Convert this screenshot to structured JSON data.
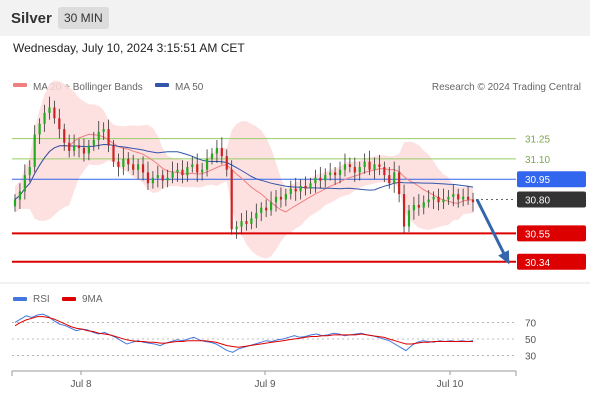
{
  "header": {
    "title": "Silver",
    "timeframe": "30 MIN",
    "datetime": "Wednesday, July 10, 2024 3:15:51 AM CET"
  },
  "legend": {
    "ma20": "MA 20 + Bollinger Bands",
    "ma50": "MA 50",
    "credit": "Research © 2024 Trading Central"
  },
  "rsi_legend": {
    "rsi": "RSI",
    "ma9": "9MA"
  },
  "colors": {
    "ma20": "#f08080",
    "ma50": "#3355aa",
    "band_fill": "#fddcdc",
    "up": "#22aa22",
    "down": "#cc2222",
    "support": "#dd0000",
    "resistance": "#99cc66",
    "pivot": "#3366ee",
    "current": "#333333",
    "rsi": "#4477dd",
    "rsi_ma": "#dd0000",
    "arrow": "#3366aa"
  },
  "chart_data": [
    {
      "type": "candlestick",
      "x_labels": [
        "Jul 8",
        "Jul 9",
        "Jul 10"
      ],
      "ylim": [
        30.22,
        31.55
      ],
      "levels": [
        {
          "value": 31.25,
          "label": "31.25",
          "kind": "resistance"
        },
        {
          "value": 31.1,
          "label": "31.10",
          "kind": "resistance"
        },
        {
          "value": 30.95,
          "label": "30.95",
          "kind": "pivot"
        },
        {
          "value": 30.8,
          "label": "30.80",
          "kind": "current"
        },
        {
          "value": 30.55,
          "label": "30.55",
          "kind": "support"
        },
        {
          "value": 30.34,
          "label": "30.34",
          "kind": "support"
        }
      ],
      "series": [
        {
          "name": "MA 20 + Bollinger Bands",
          "kind": "ma20_band"
        },
        {
          "name": "MA 50",
          "kind": "ma50"
        }
      ],
      "closes": [
        30.8,
        30.86,
        30.98,
        31.04,
        31.28,
        31.36,
        31.44,
        31.48,
        31.4,
        31.32,
        31.22,
        31.16,
        31.2,
        31.18,
        31.14,
        31.2,
        31.24,
        31.3,
        31.32,
        31.2,
        31.08,
        31.04,
        31.1,
        31.06,
        31.02,
        31.06,
        31.0,
        30.92,
        30.96,
        30.98,
        30.94,
        30.96,
        31.0,
        31.02,
        30.98,
        31.04,
        31.06,
        31.0,
        31.02,
        31.1,
        31.14,
        31.18,
        31.12,
        31.02,
        30.58,
        30.6,
        30.64,
        30.62,
        30.66,
        30.7,
        30.74,
        30.72,
        30.78,
        30.82,
        30.8,
        30.84,
        30.88,
        30.86,
        30.9,
        30.88,
        30.92,
        30.96,
        30.94,
        30.98,
        31.0,
        30.98,
        31.02,
        31.06,
        31.04,
        31.0,
        31.04,
        31.08,
        31.02,
        31.06,
        31.04,
        30.98,
        30.92,
        31.0,
        30.84,
        30.6,
        30.72,
        30.76,
        30.74,
        30.78,
        30.8,
        30.82,
        30.78,
        30.8,
        30.82,
        30.84,
        30.8,
        30.82,
        30.8,
        30.78
      ],
      "projection": {
        "from": 30.8,
        "to": 30.34
      }
    },
    {
      "type": "line",
      "name": "RSI",
      "ylim": [
        15,
        85
      ],
      "yticks": [
        70,
        50,
        30
      ],
      "series": [
        {
          "name": "RSI",
          "values": [
            70,
            74,
            78,
            76,
            79,
            80,
            77,
            72,
            68,
            66,
            63,
            60,
            62,
            61,
            58,
            56,
            58,
            55,
            52,
            48,
            44,
            46,
            48,
            46,
            45,
            44,
            42,
            45,
            47,
            49,
            48,
            50,
            52,
            49,
            47,
            46,
            44,
            40,
            36,
            34,
            38,
            40,
            42,
            44,
            46,
            48,
            47,
            49,
            50,
            52,
            54,
            52,
            53,
            55,
            56,
            54,
            55,
            57,
            56,
            54,
            55,
            56,
            57,
            55,
            54,
            52,
            50,
            48,
            44,
            40,
            36,
            42,
            46,
            48,
            47,
            46,
            48,
            47,
            48,
            47,
            48,
            47,
            48
          ]
        },
        {
          "name": "9MA",
          "values": [
            66,
            70,
            73,
            75,
            77,
            77,
            76,
            74,
            71,
            68,
            65,
            63,
            62,
            60,
            59,
            57,
            56,
            55,
            53,
            51,
            49,
            48,
            47,
            47,
            46,
            46,
            45,
            45,
            46,
            47,
            47,
            48,
            48,
            48,
            48,
            47,
            46,
            44,
            42,
            41,
            40,
            41,
            42,
            43,
            44,
            45,
            46,
            47,
            48,
            49,
            50,
            51,
            52,
            53,
            53,
            54,
            54,
            55,
            55,
            55,
            55,
            55,
            56,
            55,
            54,
            53,
            52,
            50,
            48,
            46,
            44,
            44,
            45,
            46,
            46,
            47,
            47,
            47,
            47,
            47,
            47,
            47,
            47
          ]
        }
      ]
    }
  ]
}
